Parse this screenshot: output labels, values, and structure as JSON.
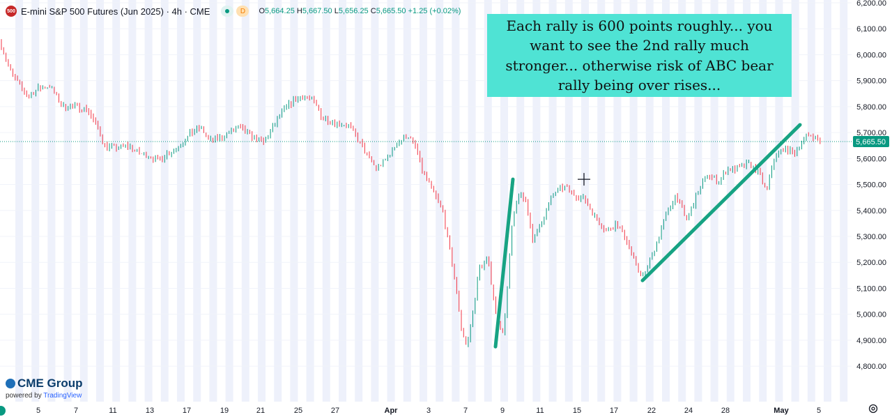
{
  "header": {
    "symbol_badge": "500",
    "title": "E-mini S&P 500 Futures (Jun 2025) · 4h · CME",
    "status_label": "D",
    "ohlc": {
      "o_key": "O",
      "o": "5,664.25",
      "h_key": "H",
      "h": "5,667.50",
      "l_key": "L",
      "l": "5,656.25",
      "c_key": "C",
      "c": "5,665.50",
      "change": "+1.25 (+0.02%)"
    }
  },
  "annotation": {
    "text": "Each rally is 600 points roughly... you want to see the 2nd rally much stronger... otherwise risk of ABC bear rally being over rises..."
  },
  "branding": {
    "name": "CME Group",
    "powered_prefix": "powered by ",
    "powered_name": "TradingView"
  },
  "colors": {
    "up": "#089981",
    "down": "#f23645",
    "trendline": "#17a383",
    "annotation_bg": "#4fe3d4",
    "session_band": "#eef1fb",
    "price_label_bg": "#089981"
  },
  "chart_data": {
    "type": "candlestick",
    "ylim": [
      4760,
      6200
    ],
    "y_ticks": [
      4800,
      4900,
      5000,
      5100,
      5200,
      5300,
      5400,
      5500,
      5600,
      5700,
      5800,
      5900,
      6000,
      6100,
      6200
    ],
    "y_tick_labels": [
      "4,800.00",
      "4,900.00",
      "5,000.00",
      "5,100.00",
      "5,200.00",
      "5,300.00",
      "5,400.00",
      "5,500.00",
      "5,600.00",
      "5,700.00",
      "5,800.00",
      "5,900.00",
      "6,000.00",
      "6,100.00",
      "6,200.00"
    ],
    "x_labels": [
      "5",
      "7",
      "11",
      "13",
      "17",
      "19",
      "21",
      "25",
      "27",
      "Apr",
      "3",
      "7",
      "9",
      "11",
      "15",
      "17",
      "22",
      "24",
      "28",
      "May",
      "5"
    ],
    "last_price": 5665.5,
    "last_price_label": "5,665.50",
    "path": [
      [
        0,
        6050
      ],
      [
        14,
        5940
      ],
      [
        28,
        5880
      ],
      [
        40,
        5840
      ],
      [
        55,
        5870
      ],
      [
        72,
        5880
      ],
      [
        90,
        5800
      ],
      [
        110,
        5800
      ],
      [
        125,
        5790
      ],
      [
        140,
        5720
      ],
      [
        150,
        5650
      ],
      [
        165,
        5640
      ],
      [
        185,
        5650
      ],
      [
        200,
        5620
      ],
      [
        215,
        5610
      ],
      [
        225,
        5590
      ],
      [
        240,
        5620
      ],
      [
        258,
        5650
      ],
      [
        275,
        5700
      ],
      [
        288,
        5720
      ],
      [
        300,
        5670
      ],
      [
        318,
        5680
      ],
      [
        340,
        5720
      ],
      [
        360,
        5690
      ],
      [
        378,
        5660
      ],
      [
        392,
        5720
      ],
      [
        405,
        5780
      ],
      [
        420,
        5820
      ],
      [
        435,
        5840
      ],
      [
        450,
        5820
      ],
      [
        462,
        5760
      ],
      [
        478,
        5740
      ],
      [
        500,
        5730
      ],
      [
        512,
        5680
      ],
      [
        525,
        5620
      ],
      [
        540,
        5560
      ],
      [
        555,
        5600
      ],
      [
        570,
        5660
      ],
      [
        585,
        5690
      ],
      [
        597,
        5640
      ],
      [
        605,
        5560
      ],
      [
        620,
        5480
      ],
      [
        635,
        5400
      ],
      [
        647,
        5220
      ],
      [
        655,
        5090
      ],
      [
        662,
        4950
      ],
      [
        670,
        4870
      ],
      [
        678,
        5000
      ],
      [
        688,
        5180
      ],
      [
        700,
        5210
      ],
      [
        712,
        5000
      ],
      [
        722,
        4920
      ],
      [
        728,
        5100
      ],
      [
        735,
        5350
      ],
      [
        745,
        5470
      ],
      [
        755,
        5430
      ],
      [
        765,
        5280
      ],
      [
        778,
        5360
      ],
      [
        795,
        5470
      ],
      [
        810,
        5490
      ],
      [
        825,
        5460
      ],
      [
        840,
        5440
      ],
      [
        855,
        5370
      ],
      [
        870,
        5320
      ],
      [
        885,
        5350
      ],
      [
        900,
        5280
      ],
      [
        915,
        5170
      ],
      [
        925,
        5150
      ],
      [
        940,
        5260
      ],
      [
        955,
        5380
      ],
      [
        970,
        5460
      ],
      [
        985,
        5360
      ],
      [
        1000,
        5460
      ],
      [
        1015,
        5540
      ],
      [
        1030,
        5510
      ],
      [
        1045,
        5560
      ],
      [
        1060,
        5560
      ],
      [
        1075,
        5580
      ],
      [
        1090,
        5540
      ],
      [
        1100,
        5470
      ],
      [
        1110,
        5600
      ],
      [
        1125,
        5640
      ],
      [
        1140,
        5620
      ],
      [
        1155,
        5680
      ],
      [
        1165,
        5690
      ],
      [
        1180,
        5665
      ]
    ],
    "trendlines": [
      {
        "x1": 711,
        "y1": 4875,
        "x2": 736,
        "y2": 5520
      },
      {
        "x1": 922,
        "y1": 5130,
        "x2": 1148,
        "y2": 5730
      }
    ],
    "crosshair": {
      "x": 838,
      "y": 5520
    }
  }
}
